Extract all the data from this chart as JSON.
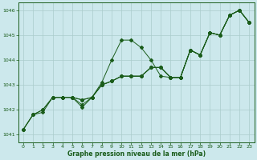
{
  "title": "Graphe pression niveau de la mer (hPa)",
  "bg_color": "#cce8ec",
  "grid_color": "#aacccc",
  "line_color": "#1a5c1a",
  "text_color": "#1a5c1a",
  "xlim": [
    -0.5,
    23.5
  ],
  "ylim": [
    1040.7,
    1046.3
  ],
  "yticks": [
    1041,
    1042,
    1043,
    1044,
    1045,
    1046
  ],
  "xticks": [
    0,
    1,
    2,
    3,
    4,
    5,
    6,
    7,
    8,
    9,
    10,
    11,
    12,
    13,
    14,
    15,
    16,
    17,
    18,
    19,
    20,
    21,
    22,
    23
  ],
  "s1_x": [
    0,
    1,
    2,
    3,
    4,
    5,
    6,
    7,
    8,
    9,
    10,
    11,
    12,
    13,
    14,
    15,
    16,
    17,
    18,
    19,
    20,
    21,
    22,
    23
  ],
  "s1_y": [
    1041.2,
    1041.8,
    1041.9,
    1042.5,
    1042.5,
    1042.5,
    1042.2,
    1042.5,
    1043.1,
    1044.0,
    1044.8,
    1044.8,
    1044.5,
    1044.0,
    1043.35,
    1043.3,
    1043.3,
    1044.4,
    1044.2,
    1045.1,
    1045.0,
    1045.8,
    1046.0,
    1045.5
  ],
  "s2_x": [
    0,
    1,
    2,
    3,
    4,
    5,
    6,
    7,
    8,
    9,
    10,
    11,
    12,
    13,
    14,
    15,
    16,
    17,
    18,
    19,
    20,
    21,
    22,
    23
  ],
  "s2_y": [
    1041.2,
    1041.8,
    1042.0,
    1042.5,
    1042.5,
    1042.5,
    1042.4,
    1042.5,
    1043.0,
    1043.15,
    1043.35,
    1043.35,
    1043.35,
    1043.7,
    1043.7,
    1043.3,
    1043.3,
    1044.4,
    1044.2,
    1045.1,
    1045.0,
    1045.8,
    1046.0,
    1045.5
  ],
  "s3_x": [
    0,
    1,
    2,
    3,
    4,
    5,
    6,
    7,
    8,
    9,
    10,
    11,
    12,
    13,
    14,
    15,
    16,
    17,
    18,
    19,
    20,
    21,
    22,
    23
  ],
  "s3_y": [
    1041.2,
    1041.8,
    1042.0,
    1042.5,
    1042.5,
    1042.5,
    1042.1,
    1042.5,
    1043.0,
    1043.15,
    1043.35,
    1043.35,
    1043.35,
    1043.7,
    1043.7,
    1043.3,
    1043.3,
    1044.4,
    1044.2,
    1045.1,
    1045.0,
    1045.8,
    1046.0,
    1045.5
  ],
  "s4_x": [
    3,
    4,
    5,
    6,
    7,
    8,
    9,
    10,
    11,
    12,
    13,
    14,
    15,
    16,
    17,
    18,
    19,
    20,
    21,
    22,
    23
  ],
  "s4_y": [
    1042.5,
    1042.5,
    1042.5,
    1042.4,
    1042.5,
    1043.0,
    1043.15,
    1043.35,
    1043.35,
    1043.35,
    1043.7,
    1043.7,
    1043.3,
    1043.3,
    1044.4,
    1044.2,
    1045.1,
    1045.0,
    1045.8,
    1046.0,
    1045.5
  ],
  "figsize": [
    3.2,
    2.0
  ],
  "dpi": 100
}
